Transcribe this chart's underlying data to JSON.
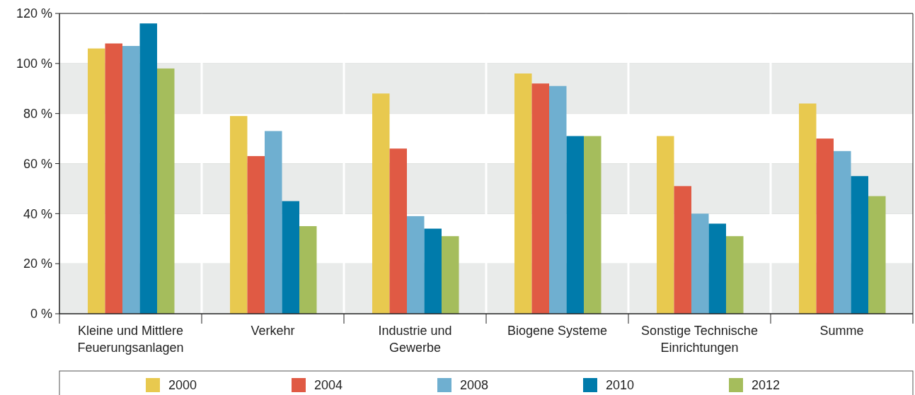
{
  "chart_data": {
    "type": "bar",
    "categories": [
      "Kleine und Mittlere\nFeuerungsanlagen",
      "Verkehr",
      "Industrie und\nGewerbe",
      "Biogene Systeme",
      "Sonstige Technische\nEinrichtungen",
      "Summe"
    ],
    "series": [
      {
        "name": "2000",
        "color": "#e8c94f",
        "values": [
          106,
          79,
          88,
          96,
          71,
          84
        ]
      },
      {
        "name": "2004",
        "color": "#e05a44",
        "values": [
          108,
          63,
          66,
          92,
          51,
          70
        ]
      },
      {
        "name": "2008",
        "color": "#6fafd0",
        "values": [
          107,
          73,
          39,
          91,
          40,
          65
        ]
      },
      {
        "name": "2010",
        "color": "#007bab",
        "values": [
          116,
          45,
          34,
          71,
          36,
          55
        ]
      },
      {
        "name": "2012",
        "color": "#a5bd5c",
        "values": [
          98,
          35,
          31,
          71,
          31,
          47
        ]
      }
    ],
    "ylim": [
      0,
      120
    ],
    "yticks": [
      {
        "value": 0,
        "label": "0 %"
      },
      {
        "value": 20,
        "label": "20 %"
      },
      {
        "value": 40,
        "label": "40 %"
      },
      {
        "value": 60,
        "label": "60 %"
      },
      {
        "value": 80,
        "label": "80 %"
      },
      {
        "value": 100,
        "label": "100 %"
      },
      {
        "value": 120,
        "label": "120 %"
      }
    ],
    "grid": "y",
    "legend": "bottom"
  }
}
